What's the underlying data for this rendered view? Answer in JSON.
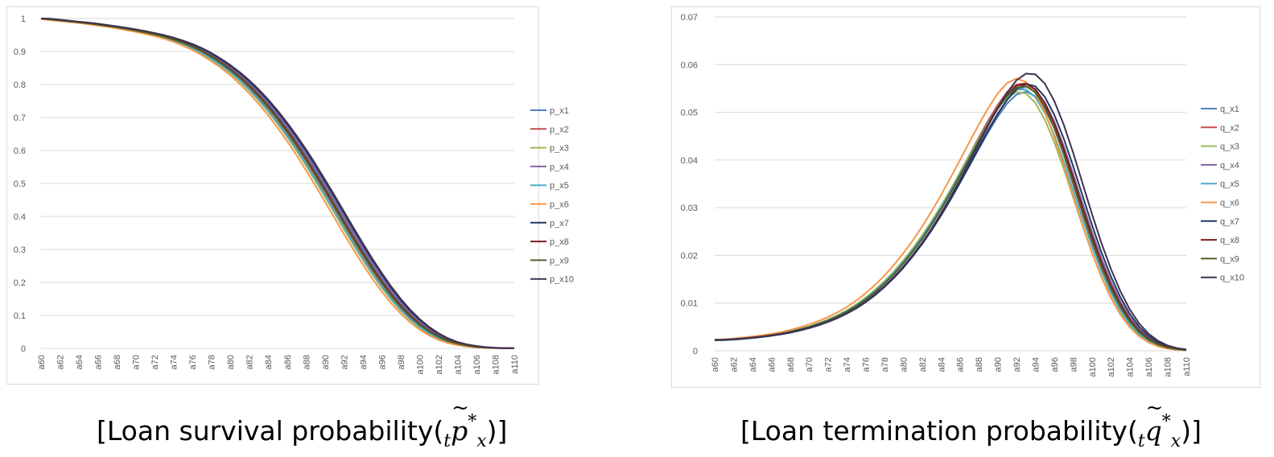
{
  "captions": {
    "left": {
      "prefix": "[Loan survival probability(",
      "sub": "t",
      "var": "p",
      "sup": "*",
      "var_sub": "x",
      "suffix": ")]"
    },
    "right": {
      "prefix": "[Loan termination probability(",
      "sub": "t",
      "var": "q",
      "var_sub": "x",
      "sup": "*",
      "suffix": ")]"
    }
  },
  "chart_data": [
    {
      "type": "line",
      "title": "",
      "xlabel": "",
      "ylabel": "",
      "ylim": [
        0,
        1
      ],
      "yticks": [
        "0",
        "0.1",
        "0.2",
        "0.3",
        "0.4",
        "0.5",
        "0.6",
        "0.7",
        "0.8",
        "0.9",
        "1"
      ],
      "grid": true,
      "legend_position": "right",
      "x": [
        "a60",
        "a61",
        "a62",
        "a63",
        "a64",
        "a65",
        "a66",
        "a67",
        "a68",
        "a69",
        "a70",
        "a71",
        "a72",
        "a73",
        "a74",
        "a75",
        "a76",
        "a77",
        "a78",
        "a79",
        "a80",
        "a81",
        "a82",
        "a83",
        "a84",
        "a85",
        "a86",
        "a87",
        "a88",
        "a89",
        "a90",
        "a91",
        "a92",
        "a93",
        "a94",
        "a95",
        "a96",
        "a97",
        "a98",
        "a99",
        "a100",
        "a101",
        "a102",
        "a103",
        "a104",
        "a105",
        "a106",
        "a107",
        "a108",
        "a109",
        "a110"
      ],
      "x_tick_labels": [
        "a60",
        "a62",
        "a64",
        "a66",
        "a68",
        "a70",
        "a72",
        "a74",
        "a76",
        "a78",
        "a80",
        "a82",
        "a84",
        "a86",
        "a88",
        "a90",
        "a92",
        "a94",
        "a96",
        "a98",
        "a100",
        "a102",
        "a104",
        "a106",
        "a108",
        "a110"
      ],
      "base": [
        1.0,
        0.997,
        0.994,
        0.991,
        0.988,
        0.985,
        0.981,
        0.977,
        0.973,
        0.968,
        0.963,
        0.957,
        0.951,
        0.944,
        0.935,
        0.925,
        0.913,
        0.899,
        0.882,
        0.863,
        0.842,
        0.818,
        0.791,
        0.761,
        0.728,
        0.692,
        0.653,
        0.612,
        0.568,
        0.521,
        0.474,
        0.425,
        0.376,
        0.328,
        0.281,
        0.237,
        0.195,
        0.157,
        0.123,
        0.094,
        0.069,
        0.049,
        0.033,
        0.021,
        0.013,
        0.008,
        0.004,
        0.002,
        0.001,
        0.0005,
        0.0002
      ],
      "series": [
        {
          "name": "p_x1",
          "color": "#4f81bd",
          "shift": 0.4
        },
        {
          "name": "p_x2",
          "color": "#c0504d",
          "shift": 0.0
        },
        {
          "name": "p_x3",
          "color": "#9bbb59",
          "shift": -0.3
        },
        {
          "name": "p_x4",
          "color": "#8064a2",
          "shift": 0.5
        },
        {
          "name": "p_x5",
          "color": "#4bacc6",
          "shift": -0.2
        },
        {
          "name": "p_x6",
          "color": "#f79646",
          "shift": -0.6
        },
        {
          "name": "p_x7",
          "color": "#1f3864",
          "shift": 0.7
        },
        {
          "name": "p_x8",
          "color": "#7b1c1c",
          "shift": 0.2
        },
        {
          "name": "p_x9",
          "color": "#4f6228",
          "shift": 0.1
        },
        {
          "name": "p_x10",
          "color": "#3f3151",
          "shift": 0.8
        }
      ]
    },
    {
      "type": "line",
      "title": "",
      "xlabel": "",
      "ylabel": "",
      "ylim": [
        0,
        0.07
      ],
      "yticks": [
        "0",
        "0.01",
        "0.02",
        "0.03",
        "0.04",
        "0.05",
        "0.06",
        "0.07"
      ],
      "grid": true,
      "legend_position": "right",
      "x": [
        "a60",
        "a61",
        "a62",
        "a63",
        "a64",
        "a65",
        "a66",
        "a67",
        "a68",
        "a69",
        "a70",
        "a71",
        "a72",
        "a73",
        "a74",
        "a75",
        "a76",
        "a77",
        "a78",
        "a79",
        "a80",
        "a81",
        "a82",
        "a83",
        "a84",
        "a85",
        "a86",
        "a87",
        "a88",
        "a89",
        "a90",
        "a91",
        "a92",
        "a93",
        "a94",
        "a95",
        "a96",
        "a97",
        "a98",
        "a99",
        "a100",
        "a101",
        "a102",
        "a103",
        "a104",
        "a105",
        "a106",
        "a107",
        "a108",
        "a109",
        "a110"
      ],
      "x_tick_labels": [
        "a60",
        "a62",
        "a64",
        "a66",
        "a68",
        "a70",
        "a72",
        "a74",
        "a76",
        "a78",
        "a80",
        "a82",
        "a84",
        "a86",
        "a88",
        "a90",
        "a92",
        "a94",
        "a96",
        "a98",
        "a100",
        "a102",
        "a104",
        "a106",
        "a108",
        "a110"
      ],
      "base": [
        0.0022,
        0.0023,
        0.0024,
        0.0026,
        0.0028,
        0.003,
        0.0033,
        0.0036,
        0.004,
        0.0045,
        0.005,
        0.0057,
        0.0064,
        0.0073,
        0.0083,
        0.0095,
        0.0109,
        0.0125,
        0.0143,
        0.0163,
        0.0186,
        0.0211,
        0.0238,
        0.0268,
        0.03,
        0.0334,
        0.037,
        0.0406,
        0.0443,
        0.0478,
        0.051,
        0.0537,
        0.0553,
        0.0555,
        0.054,
        0.0508,
        0.0463,
        0.0408,
        0.0347,
        0.0285,
        0.0226,
        0.0173,
        0.0127,
        0.0089,
        0.0059,
        0.0037,
        0.0022,
        0.0012,
        0.0006,
        0.0003,
        0.0001
      ],
      "series": [
        {
          "name": "q_x1",
          "color": "#4f81bd",
          "shift": 0.3,
          "scale": 0.98
        },
        {
          "name": "q_x2",
          "color": "#c0504d",
          "shift": 0.0,
          "scale": 1.01
        },
        {
          "name": "q_x3",
          "color": "#9bbb59",
          "shift": -0.3,
          "scale": 0.98
        },
        {
          "name": "q_x4",
          "color": "#8064a2",
          "shift": 0.4,
          "scale": 1.0
        },
        {
          "name": "q_x5",
          "color": "#4bacc6",
          "shift": -0.1,
          "scale": 0.99
        },
        {
          "name": "q_x6",
          "color": "#f79646",
          "shift": -0.5,
          "scale": 1.03
        },
        {
          "name": "q_x7",
          "color": "#1f3864",
          "shift": 0.6,
          "scale": 1.01
        },
        {
          "name": "q_x8",
          "color": "#7b1c1c",
          "shift": 0.2,
          "scale": 1.01
        },
        {
          "name": "q_x9",
          "color": "#4f6228",
          "shift": 0.1,
          "scale": 1.0
        },
        {
          "name": "q_x10",
          "color": "#3f3151",
          "shift": 0.8,
          "scale": 1.05
        }
      ]
    }
  ]
}
